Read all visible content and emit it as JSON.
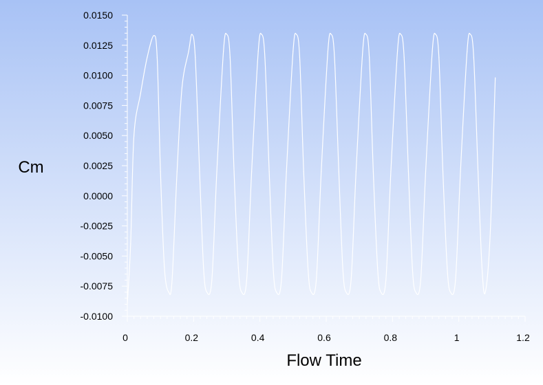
{
  "chart_data": {
    "type": "line",
    "title": "",
    "xlabel": "Flow Time",
    "ylabel": "Cm",
    "xlim": [
      0,
      1.2
    ],
    "ylim": [
      -0.01,
      0.015
    ],
    "x_ticks": [
      "0",
      "0.2",
      "0.4",
      "0.6",
      "0.8",
      "1",
      "1.2"
    ],
    "y_ticks": [
      "0.0150",
      "0.0125",
      "0.0100",
      "0.0075",
      "0.0050",
      "0.0025",
      "0.0000",
      "-0.0025",
      "-0.0050",
      "-0.0075",
      "-0.0100"
    ],
    "grid": false,
    "legend": "none",
    "series": [
      {
        "line_color": "#ffffff",
        "x": [
          0.0,
          0.01,
          0.02,
          0.04,
          0.06,
          0.08,
          0.09,
          0.1,
          0.112,
          0.125,
          0.135,
          0.15,
          0.165,
          0.185,
          0.195,
          0.205,
          0.218,
          0.23,
          0.24,
          0.255,
          0.27,
          0.29,
          0.3,
          0.31,
          0.322,
          0.335,
          0.345,
          0.36,
          0.375,
          0.395,
          0.405,
          0.415,
          0.428,
          0.44,
          0.45,
          0.465,
          0.48,
          0.5,
          0.51,
          0.52,
          0.532,
          0.545,
          0.555,
          0.57,
          0.585,
          0.605,
          0.615,
          0.625,
          0.638,
          0.65,
          0.66,
          0.675,
          0.69,
          0.71,
          0.72,
          0.73,
          0.742,
          0.755,
          0.765,
          0.78,
          0.795,
          0.815,
          0.825,
          0.835,
          0.848,
          0.86,
          0.87,
          0.885,
          0.9,
          0.92,
          0.93,
          0.94,
          0.952,
          0.965,
          0.975,
          0.99,
          1.005,
          1.025,
          1.035,
          1.045,
          1.058,
          1.07,
          1.08,
          1.095,
          1.11
        ],
        "values": [
          -0.009,
          -0.004,
          0.005,
          0.0085,
          0.0115,
          0.0133,
          0.0115,
          0.002,
          -0.006,
          -0.008,
          -0.007,
          0.002,
          0.009,
          0.012,
          0.0134,
          0.0115,
          0.002,
          -0.006,
          -0.008,
          -0.007,
          0.002,
          0.012,
          0.0134,
          0.0115,
          0.002,
          -0.006,
          -0.008,
          -0.007,
          0.002,
          0.012,
          0.0134,
          0.0115,
          0.002,
          -0.006,
          -0.008,
          -0.007,
          0.002,
          0.012,
          0.0134,
          0.0115,
          0.002,
          -0.006,
          -0.008,
          -0.007,
          0.002,
          0.012,
          0.0134,
          0.0115,
          0.002,
          -0.006,
          -0.008,
          -0.007,
          0.002,
          0.012,
          0.0134,
          0.0115,
          0.002,
          -0.006,
          -0.008,
          -0.007,
          0.002,
          0.012,
          0.0134,
          0.0115,
          0.002,
          -0.006,
          -0.008,
          -0.007,
          0.002,
          0.012,
          0.0134,
          0.0115,
          0.002,
          -0.006,
          -0.008,
          -0.007,
          0.002,
          0.012,
          0.0134,
          0.0115,
          0.002,
          -0.006,
          -0.008,
          -0.003,
          0.0098
        ]
      }
    ]
  },
  "style": {
    "background_top": "#a8c2f5",
    "background_bottom": "#ffffff",
    "axis_color": "#ffffff",
    "line_color": "#ffffff"
  }
}
